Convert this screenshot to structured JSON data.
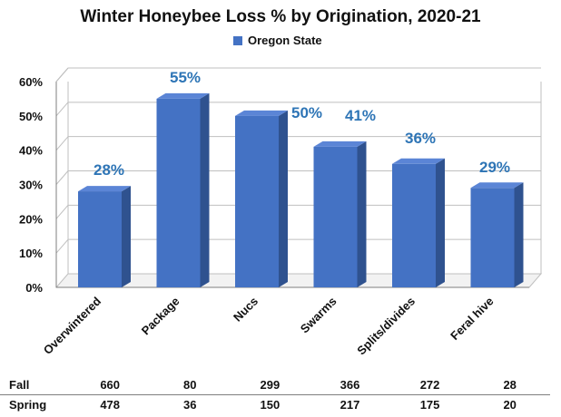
{
  "colors": {
    "bar_front": "#4472C4",
    "bar_side": "#2F528F",
    "bar_top": "#5B85D6",
    "value_label": "#2E75B6",
    "grid": "#bfbfbf"
  },
  "chart_data": {
    "type": "bar",
    "title": "Winter Honeybee Loss % by Origination, 2020-21",
    "categories": [
      "Overwintered",
      "Package",
      "Nucs",
      "Swarms",
      "Splits/divides",
      "Feral hive"
    ],
    "series": [
      {
        "name": "Oregon State",
        "values": [
          28,
          55,
          50,
          41,
          36,
          29
        ]
      }
    ],
    "value_labels": [
      "28%",
      "55%",
      "50%",
      "41%",
      "36%",
      "29%"
    ],
    "ylim": [
      0,
      60
    ],
    "yticks": [
      "0%",
      "10%",
      "20%",
      "30%",
      "40%",
      "50%",
      "60%"
    ],
    "grid": true,
    "legend": "top",
    "three_d": true
  },
  "table": {
    "rows": [
      {
        "label": "Fall",
        "values": [
          "660",
          "80",
          "299",
          "366",
          "272",
          "28"
        ]
      },
      {
        "label": "Spring",
        "values": [
          "478",
          "36",
          "150",
          "217",
          "175",
          "20"
        ]
      }
    ]
  }
}
